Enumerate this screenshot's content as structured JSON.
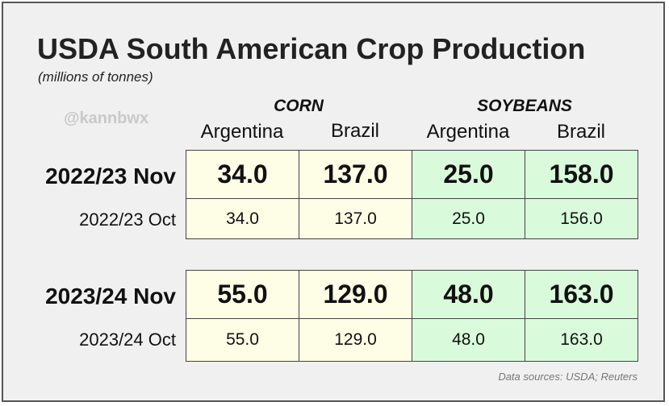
{
  "chart_data": {
    "type": "table",
    "title": "USDA South American Crop Production",
    "subtitle": "(millions of tonnes)",
    "watermark": "@kannbwx",
    "groups": [
      {
        "name": "CORN",
        "columns": [
          "Argentina",
          "Brazil"
        ]
      },
      {
        "name": "SOYBEANS",
        "columns": [
          "Argentina",
          "Brazil"
        ]
      }
    ],
    "columns": [
      "Argentina",
      "Brazil",
      "Argentina",
      "Brazil"
    ],
    "rows": [
      {
        "label": "2022/23 Nov",
        "values": [
          "34.0",
          "137.0",
          "25.0",
          "158.0"
        ]
      },
      {
        "label": "2022/23 Oct",
        "values": [
          "34.0",
          "137.0",
          "25.0",
          "156.0"
        ]
      },
      {
        "label": "2023/24 Nov",
        "values": [
          "55.0",
          "129.0",
          "48.0",
          "163.0"
        ]
      },
      {
        "label": "2023/24 Oct",
        "values": [
          "55.0",
          "129.0",
          "48.0",
          "163.0"
        ]
      }
    ],
    "source": "Data sources: USDA; Reuters",
    "colors": {
      "corn": "#fefde6",
      "soybeans": "#d9fbdc",
      "background": "#f0f0f0"
    }
  }
}
